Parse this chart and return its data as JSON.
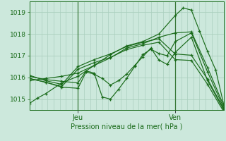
{
  "xlabel": "Pression niveau de la mer( hPa )",
  "bg_color": "#cce8dc",
  "grid_color": "#aacfbe",
  "line_color": "#1a6b1a",
  "vline_color": "#3a7a3a",
  "ylim": [
    1014.5,
    1019.5
  ],
  "xlim": [
    0,
    48
  ],
  "yticks": [
    1015,
    1016,
    1017,
    1018,
    1019
  ],
  "xtick_positions": [
    12,
    36
  ],
  "xtick_labels": [
    "Jeu",
    "Ven"
  ],
  "vline_positions": [
    12,
    36
  ],
  "series": [
    [
      0.0,
      1014.8,
      2.0,
      1015.05,
      4.0,
      1015.25,
      8.0,
      1015.75,
      12.0,
      1016.05,
      16.0,
      1016.55,
      20.0,
      1017.05,
      24.0,
      1017.45,
      28.0,
      1017.65,
      32.0,
      1018.0,
      36.0,
      1018.85,
      38.0,
      1019.2,
      40.0,
      1019.1,
      42.0,
      1018.15,
      44.0,
      1017.2,
      46.0,
      1016.35,
      48.0,
      1014.75
    ],
    [
      0.0,
      1015.85,
      4.0,
      1015.95,
      8.0,
      1016.05,
      12.0,
      1016.2,
      16.0,
      1016.55,
      20.0,
      1016.9,
      24.0,
      1017.35,
      28.0,
      1017.55,
      32.0,
      1017.85,
      36.0,
      1018.05,
      40.0,
      1018.1,
      44.0,
      1016.45,
      48.0,
      1014.7
    ],
    [
      0.0,
      1016.05,
      4.0,
      1015.9,
      8.0,
      1015.82,
      12.0,
      1015.75,
      14.0,
      1016.3,
      16.0,
      1016.2,
      18.0,
      1015.1,
      20.0,
      1015.0,
      22.0,
      1015.45,
      24.0,
      1015.95,
      26.0,
      1016.5,
      28.0,
      1017.05,
      30.0,
      1017.3,
      32.0,
      1017.1,
      34.0,
      1017.0,
      36.0,
      1017.65,
      40.0,
      1018.05,
      44.0,
      1016.25,
      48.0,
      1014.6
    ],
    [
      0.0,
      1015.95,
      4.0,
      1015.78,
      8.0,
      1015.55,
      12.0,
      1015.5,
      14.0,
      1016.25,
      16.0,
      1016.15,
      18.0,
      1015.95,
      20.0,
      1015.65,
      22.0,
      1015.85,
      24.0,
      1016.15,
      26.0,
      1016.55,
      28.0,
      1016.95,
      30.0,
      1017.35,
      32.0,
      1016.8,
      34.0,
      1016.6,
      36.0,
      1017.15,
      40.0,
      1017.85,
      44.0,
      1015.85,
      48.0,
      1014.5
    ],
    [
      0.0,
      1016.1,
      4.0,
      1015.85,
      8.0,
      1015.68,
      12.0,
      1016.5,
      16.0,
      1016.82,
      20.0,
      1017.08,
      24.0,
      1017.42,
      28.0,
      1017.62,
      32.0,
      1017.78,
      36.0,
      1017.08,
      40.0,
      1017.02,
      44.0,
      1015.92,
      48.0,
      1014.55
    ],
    [
      0.0,
      1015.95,
      4.0,
      1015.78,
      8.0,
      1015.58,
      12.0,
      1016.38,
      16.0,
      1016.68,
      20.0,
      1016.92,
      24.0,
      1017.28,
      28.0,
      1017.48,
      32.0,
      1017.62,
      36.0,
      1016.82,
      40.0,
      1016.78,
      44.0,
      1015.68,
      48.0,
      1014.42
    ]
  ]
}
